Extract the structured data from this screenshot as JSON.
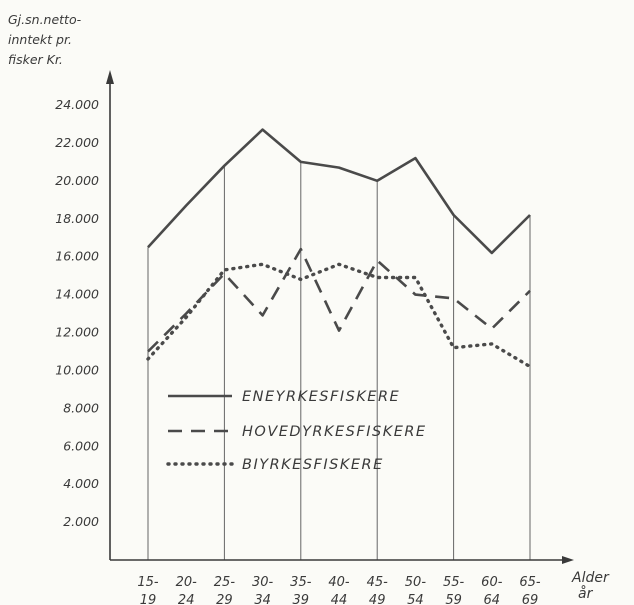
{
  "chart_data": {
    "type": "line",
    "ylabel_lines": [
      "Gj.sn.netto-",
      "inntekt pr.",
      "fisker Kr."
    ],
    "xlabel_lines": [
      "Alder",
      "år"
    ],
    "categories": [
      [
        "15-",
        "19"
      ],
      [
        "20-",
        "24"
      ],
      [
        "25-",
        "29"
      ],
      [
        "30-",
        "34"
      ],
      [
        "35-",
        "39"
      ],
      [
        "40-",
        "44"
      ],
      [
        "45-",
        "49"
      ],
      [
        "50-",
        "54"
      ],
      [
        "55-",
        "59"
      ],
      [
        "60-",
        "64"
      ],
      [
        "65-",
        "69"
      ]
    ],
    "ylim": [
      0,
      24000
    ],
    "yticks": [
      2000,
      4000,
      6000,
      8000,
      10000,
      12000,
      14000,
      16000,
      18000,
      20000,
      22000,
      24000
    ],
    "ytick_labels": [
      "2.000",
      "4.000",
      "6.000",
      "8.000",
      "10.000",
      "12.000",
      "14.000",
      "16.000",
      "18.000",
      "20.000",
      "22.000",
      "24.000"
    ],
    "vertical_gridlines_at": [
      0,
      2,
      4,
      6,
      8,
      10
    ],
    "legend_placement": "center-left",
    "series": [
      {
        "name": "ENEYRKESFISKERE",
        "style": "solid",
        "values": [
          16500,
          18700,
          20800,
          22700,
          21000,
          20700,
          20000,
          21200,
          18200,
          16200,
          18200
        ]
      },
      {
        "name": "HOVEDYRKESFISKERE",
        "style": "dashed",
        "values": [
          11000,
          13000,
          15100,
          12900,
          16400,
          12100,
          15800,
          14000,
          13800,
          12200,
          14200
        ]
      },
      {
        "name": "BIYRKESFISKERE",
        "style": "dotted",
        "values": [
          10600,
          12800,
          15300,
          15600,
          14800,
          15600,
          14900,
          14900,
          11200,
          11400,
          10200
        ]
      }
    ],
    "colors": {
      "line": "#4a4a4a",
      "axis": "#3a3a3a",
      "grid": "#666666",
      "background": "#fbfbf7"
    }
  }
}
